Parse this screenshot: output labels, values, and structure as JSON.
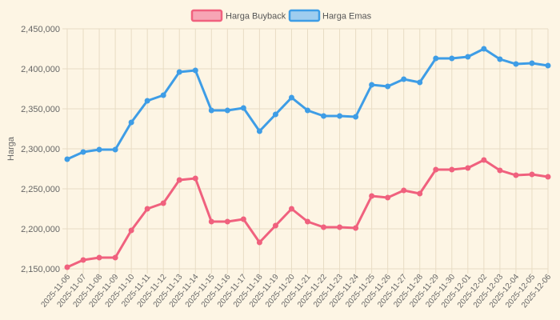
{
  "chart_data": {
    "type": "line",
    "title": "",
    "xlabel": "",
    "ylabel": "Harga",
    "ylim": [
      2150000,
      2450000
    ],
    "y_ticks": [
      2150000,
      2200000,
      2250000,
      2300000,
      2350000,
      2400000,
      2450000
    ],
    "grid": true,
    "legend_position": "top",
    "categories": [
      "2025-11-06",
      "2025-11-07",
      "2025-11-08",
      "2025-11-09",
      "2025-11-10",
      "2025-11-11",
      "2025-11-12",
      "2025-11-13",
      "2025-11-14",
      "2025-11-15",
      "2025-11-16",
      "2025-11-17",
      "2025-11-18",
      "2025-11-19",
      "2025-11-20",
      "2025-11-21",
      "2025-11-22",
      "2025-11-23",
      "2025-11-24",
      "2025-11-25",
      "2025-11-26",
      "2025-11-27",
      "2025-11-28",
      "2025-11-29",
      "2025-11-30",
      "2025-12-01",
      "2025-12-02",
      "2025-12-03",
      "2025-12-04",
      "2025-12-05",
      "2025-12-06"
    ],
    "series": [
      {
        "name": "Harga Buyback",
        "color": "#f0617e",
        "fill": "#f7a5b5",
        "values": [
          2152000,
          2161000,
          2164000,
          2164000,
          2198000,
          2225000,
          2232000,
          2261000,
          2263000,
          2209000,
          2209000,
          2212000,
          2183000,
          2204000,
          2225000,
          2209000,
          2202000,
          2202000,
          2201000,
          2241000,
          2239000,
          2248000,
          2244000,
          2274000,
          2274000,
          2276000,
          2286000,
          2273000,
          2267000,
          2268000,
          2265000
        ]
      },
      {
        "name": "Harga Emas",
        "color": "#3e9de6",
        "fill": "#9fcdef",
        "values": [
          2287000,
          2296000,
          2299000,
          2299000,
          2333000,
          2360000,
          2367000,
          2396000,
          2398000,
          2348000,
          2348000,
          2351000,
          2322000,
          2343000,
          2364000,
          2348000,
          2341000,
          2341000,
          2340000,
          2380000,
          2378000,
          2387000,
          2383000,
          2413000,
          2413000,
          2415000,
          2425000,
          2412000,
          2406000,
          2407000,
          2404000
        ]
      }
    ]
  }
}
